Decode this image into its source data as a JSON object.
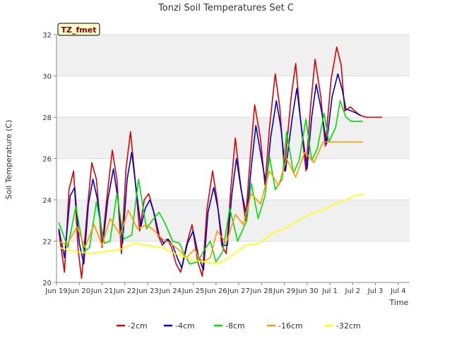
{
  "chart_data": {
    "type": "line",
    "title": "Tonzi Soil Temperatures Set C",
    "xlabel": "Time",
    "ylabel": "Soil Temperature (C)",
    "annotation": "TZ_fmet",
    "xlim": [
      0,
      15.5
    ],
    "ylim": [
      20,
      32
    ],
    "x_ticks": [
      {
        "x": 0,
        "label": "Jun 19"
      },
      {
        "x": 1,
        "label": "Jun 20"
      },
      {
        "x": 2,
        "label": "Jun 21"
      },
      {
        "x": 3,
        "label": "Jun 22"
      },
      {
        "x": 4,
        "label": "Jun 23"
      },
      {
        "x": 5,
        "label": "Jun 24"
      },
      {
        "x": 6,
        "label": "Jun 25"
      },
      {
        "x": 7,
        "label": "Jun 26"
      },
      {
        "x": 8,
        "label": "Jun 27"
      },
      {
        "x": 9,
        "label": "Jun 28"
      },
      {
        "x": 10,
        "label": "Jun 29"
      },
      {
        "x": 11,
        "label": "Jun 30"
      },
      {
        "x": 12,
        "label": "Jul 1"
      },
      {
        "x": 13,
        "label": "Jul 2"
      },
      {
        "x": 14,
        "label": "Jul 3"
      },
      {
        "x": 15,
        "label": "Jul 4"
      }
    ],
    "y_ticks": [
      20,
      22,
      24,
      26,
      28,
      30,
      32
    ],
    "grid": true,
    "legend_position": "bottom",
    "series": [
      {
        "name": "-2cm",
        "color": "#dd0000",
        "x": [
          0.1,
          0.35,
          0.55,
          0.75,
          0.95,
          1.1,
          1.35,
          1.55,
          1.75,
          2.0,
          2.2,
          2.45,
          2.65,
          2.85,
          3.05,
          3.25,
          3.45,
          3.65,
          3.85,
          4.05,
          4.25,
          4.45,
          4.65,
          4.85,
          5.05,
          5.25,
          5.45,
          5.7,
          5.95,
          6.2,
          6.4,
          6.6,
          6.85,
          7.05,
          7.25,
          7.45,
          7.65,
          7.85,
          8.05,
          8.3,
          8.5,
          8.7,
          8.95,
          9.15,
          9.35,
          9.6,
          9.8,
          10.0,
          10.3,
          10.5,
          10.7,
          10.95,
          11.15,
          11.35,
          11.6,
          11.8,
          12.05,
          12.3,
          12.5,
          12.65,
          12.9,
          13.1,
          13.3,
          13.6,
          13.75,
          13.95,
          14.1,
          14.3
        ],
        "y": [
          22.5,
          20.5,
          24.5,
          25.4,
          21.6,
          20.2,
          23.5,
          25.8,
          25.0,
          21.7,
          24.0,
          26.4,
          25.0,
          21.4,
          25.5,
          27.3,
          25.0,
          22.5,
          24.0,
          24.3,
          23.5,
          22.3,
          21.8,
          22.1,
          21.7,
          20.9,
          20.5,
          21.8,
          22.8,
          21.0,
          20.3,
          23.5,
          25.4,
          24.0,
          21.8,
          21.4,
          24.5,
          27.0,
          25.0,
          23.0,
          26.0,
          28.6,
          27.0,
          24.7,
          27.5,
          30.1,
          28.5,
          25.4,
          29.0,
          30.6,
          28.0,
          25.4,
          28.5,
          30.8,
          29.0,
          26.6,
          29.8,
          31.4,
          30.5,
          28.3,
          28.5,
          28.3,
          28.1,
          28.0,
          28.0,
          28.0,
          28.0,
          28.0
        ]
      },
      {
        "name": "-4cm",
        "color": "#0000cc",
        "x": [
          0.1,
          0.35,
          0.6,
          0.8,
          1.0,
          1.2,
          1.4,
          1.6,
          1.8,
          2.05,
          2.25,
          2.5,
          2.7,
          2.9,
          3.1,
          3.3,
          3.5,
          3.7,
          3.9,
          4.1,
          4.3,
          4.5,
          4.7,
          4.9,
          5.1,
          5.3,
          5.5,
          5.75,
          6.0,
          6.25,
          6.45,
          6.65,
          6.9,
          7.1,
          7.3,
          7.5,
          7.7,
          7.9,
          8.1,
          8.35,
          8.55,
          8.75,
          9.0,
          9.2,
          9.4,
          9.65,
          9.85,
          10.05,
          10.35,
          10.55,
          10.75,
          11.0,
          11.2,
          11.4,
          11.65,
          11.85,
          12.1,
          12.35,
          12.55,
          12.7,
          12.95,
          13.15,
          13.35
        ],
        "y": [
          22.6,
          21.2,
          24.2,
          24.6,
          21.9,
          20.9,
          23.8,
          25.0,
          24.0,
          22.0,
          24.0,
          25.5,
          24.0,
          21.9,
          25.0,
          26.3,
          24.5,
          22.7,
          23.6,
          24.0,
          23.3,
          22.3,
          21.9,
          22.1,
          21.8,
          21.2,
          20.7,
          21.9,
          22.5,
          21.2,
          20.6,
          23.4,
          24.6,
          23.5,
          21.8,
          21.8,
          24.3,
          26.0,
          24.5,
          23.2,
          25.6,
          27.6,
          26.0,
          24.7,
          27.0,
          28.8,
          27.5,
          25.4,
          28.0,
          29.4,
          27.5,
          25.5,
          28.0,
          29.6,
          28.2,
          26.7,
          29.0,
          30.1,
          29.3,
          28.4,
          28.3,
          28.2,
          28.1
        ]
      },
      {
        "name": "-8cm",
        "color": "#00dd00",
        "x": [
          0.1,
          0.5,
          0.85,
          1.2,
          1.45,
          1.75,
          2.1,
          2.35,
          2.65,
          2.95,
          3.3,
          3.6,
          3.95,
          4.2,
          4.5,
          4.75,
          5.1,
          5.4,
          5.6,
          5.85,
          6.2,
          6.5,
          6.75,
          7.0,
          7.3,
          7.6,
          7.95,
          8.35,
          8.55,
          8.85,
          9.15,
          9.35,
          9.6,
          9.9,
          10.1,
          10.4,
          10.65,
          10.95,
          11.2,
          11.45,
          11.75,
          11.95,
          12.25,
          12.45,
          12.7,
          12.95,
          13.25,
          13.45
        ],
        "y": [
          22.9,
          21.7,
          23.7,
          21.5,
          21.7,
          23.9,
          21.9,
          22.0,
          24.3,
          22.1,
          22.3,
          25.0,
          22.6,
          23.0,
          23.4,
          22.9,
          22.0,
          21.9,
          21.4,
          20.9,
          21.0,
          21.6,
          22.0,
          21.0,
          21.5,
          23.6,
          22.0,
          23.0,
          24.8,
          23.1,
          24.2,
          26.1,
          24.5,
          25.0,
          27.3,
          25.3,
          25.9,
          27.9,
          25.9,
          26.5,
          28.2,
          26.8,
          27.5,
          28.8,
          28.0,
          27.8,
          27.8,
          27.8
        ]
      },
      {
        "name": "-16cm",
        "color": "#ff9900",
        "x": [
          0.1,
          0.45,
          0.9,
          1.25,
          1.65,
          2.0,
          2.35,
          2.8,
          3.15,
          3.55,
          3.95,
          4.3,
          4.65,
          5.0,
          5.35,
          5.7,
          6.05,
          6.4,
          6.75,
          7.05,
          7.45,
          7.85,
          8.2,
          8.55,
          8.95,
          9.35,
          9.75,
          10.1,
          10.5,
          10.9,
          11.3,
          11.7,
          12.05,
          12.45,
          12.85,
          13.2,
          13.45
        ],
        "y": [
          22.0,
          21.8,
          22.7,
          21.7,
          22.8,
          21.8,
          23.1,
          22.3,
          23.5,
          22.6,
          22.8,
          22.5,
          22.1,
          21.9,
          21.6,
          21.2,
          21.6,
          21.0,
          21.2,
          22.5,
          21.9,
          23.3,
          22.8,
          24.3,
          23.8,
          25.4,
          24.7,
          26.0,
          25.1,
          26.3,
          25.8,
          26.8,
          26.8,
          26.8,
          26.8,
          26.8,
          26.8
        ]
      },
      {
        "name": "-32cm",
        "color": "#ffff00",
        "x": [
          0.1,
          0.8,
          1.5,
          2.2,
          2.8,
          3.4,
          3.9,
          4.6,
          5.2,
          5.7,
          6.4,
          7.1,
          7.7,
          8.3,
          8.9,
          9.5,
          10.0,
          10.6,
          11.1,
          11.7,
          12.2,
          12.7,
          13.1,
          13.5
        ],
        "y": [
          21.7,
          21.5,
          21.4,
          21.5,
          21.6,
          21.9,
          21.8,
          21.7,
          21.4,
          21.2,
          21.0,
          20.9,
          21.3,
          21.8,
          21.9,
          22.4,
          22.6,
          23.0,
          23.3,
          23.5,
          23.8,
          24.0,
          24.2,
          24.3
        ]
      }
    ]
  }
}
